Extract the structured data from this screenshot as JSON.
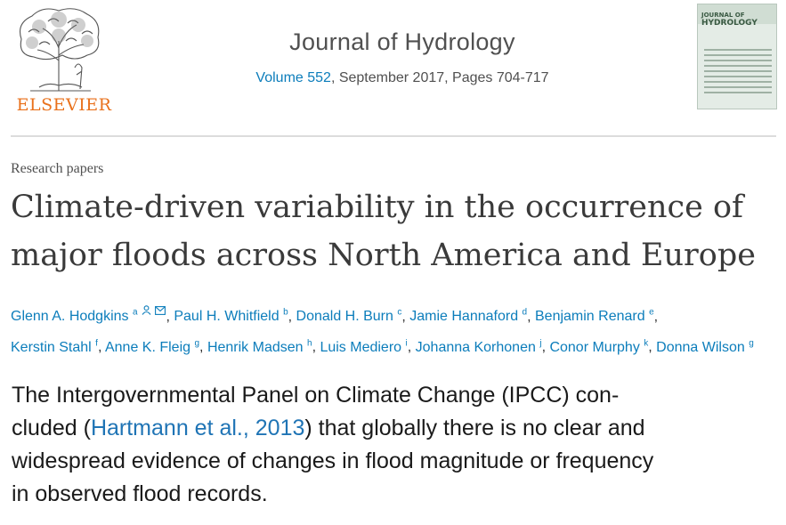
{
  "header": {
    "publisher": "ELSEVIER",
    "journal_title": "Journal of Hydrology",
    "volume_link": "Volume 552",
    "volume_rest": ", September 2017, Pages 704-717",
    "cover_title_line1": "JOURNAL OF",
    "cover_title_line2": "HYDROLOGY"
  },
  "article": {
    "type": "Research papers",
    "title_line1": "Climate-driven variability in the occurrence of",
    "title_line2": "major floods across North America and Europe"
  },
  "authors": [
    {
      "name": "Glenn A. Hodgkins",
      "sup": "a"
    },
    {
      "name": "Paul H. Whitfield",
      "sup": "b"
    },
    {
      "name": "Donald H. Burn",
      "sup": "c"
    },
    {
      "name": "Jamie Hannaford",
      "sup": "d"
    },
    {
      "name": "Benjamin Renard",
      "sup": "e"
    },
    {
      "name": "Kerstin Stahl",
      "sup": "f"
    },
    {
      "name": "Anne K. Fleig",
      "sup": "g"
    },
    {
      "name": "Henrik Madsen",
      "sup": "h"
    },
    {
      "name": "Luis Mediero",
      "sup": "i"
    },
    {
      "name": "Johanna Korhonen",
      "sup": "j"
    },
    {
      "name": "Conor Murphy",
      "sup": "k"
    },
    {
      "name": "Donna Wilson",
      "sup": "g"
    }
  ],
  "quote": {
    "line1": "The Intergovernmental Panel on Climate Change (IPCC) con-",
    "line2_pre": "cluded (",
    "citation": "Hartmann et al., 2013",
    "line2_post": ") that globally there is no clear and",
    "line3": "widespread evidence of changes in flood magnitude or frequency",
    "line4": "in observed flood records."
  },
  "colors": {
    "link": "#0c7dbb",
    "publisher": "#e9711c"
  },
  "icons": {
    "person": "person-icon",
    "mail": "mail-icon"
  }
}
